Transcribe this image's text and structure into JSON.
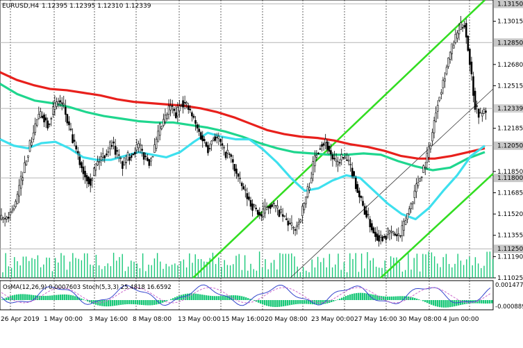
{
  "header": {
    "symbol_tf": "EURUSD,H4",
    "ohlc": "1.12395 1.12395 1.12310 1.12339"
  },
  "price_axis": {
    "ticks": [
      "1.13015",
      "1.12680",
      "1.12515",
      "1.12185",
      "1.11850",
      "1.11685",
      "1.11520",
      "1.11355",
      "1.11190",
      "1.11025"
    ],
    "tick_values": [
      1.13015,
      1.1268,
      1.12515,
      1.12185,
      1.1185,
      1.11685,
      1.1152,
      1.11355,
      1.1119,
      1.11025
    ],
    "ylim": [
      1.11025,
      1.1318
    ],
    "highlight_labels": [
      {
        "text": "1.13150",
        "value": 1.1315
      },
      {
        "text": "1.12850",
        "value": 1.1285
      },
      {
        "text": "1.12339",
        "value": 1.12339
      },
      {
        "text": "1.12050",
        "value": 1.1205
      },
      {
        "text": "1.11800",
        "value": 1.118
      },
      {
        "text": "1.11250",
        "value": 1.1125
      }
    ],
    "highlight_color": "#c8c8c8",
    "current_color": "#d0d0d0"
  },
  "time_axis": {
    "labels": [
      "26 Apr 2019",
      "1 May 00:00",
      "3 May 16:00",
      "8 May 08:00",
      "13 May 00:00",
      "15 May 16:00",
      "20 May 08:00",
      "23 May 00:00",
      "27 May 16:00",
      "30 May 08:00",
      "4 Jun 00:00"
    ]
  },
  "indicator": {
    "label": "OsMA(12,26,9) 0.0007603  Stoch(5,3,3) 25.4818 16.6592",
    "axis_top": "0.0014777",
    "axis_bottom": "-0.0008899"
  },
  "colors": {
    "ema_slow": "#e8201c",
    "ema_mid": "#1fd68e",
    "ema_fast": "#3ee0ee",
    "channel": "#33dd22",
    "channel_mid": "#333333",
    "osma": "#18c878",
    "stoch_main": "#3344cc",
    "stoch_signal": "#cc66cc",
    "candles": "#000000",
    "volume": "#18c878"
  },
  "chart_data": {
    "type": "line",
    "title": "EURUSD,H4",
    "price_range": [
      1.11025,
      1.1318
    ],
    "series": [
      {
        "name": "close",
        "values": [
          1.1148,
          1.1153,
          1.116,
          1.1178,
          1.1196,
          1.121,
          1.1226,
          1.1229,
          1.1222,
          1.1233,
          1.124,
          1.1235,
          1.1218,
          1.1205,
          1.1192,
          1.1182,
          1.1178,
          1.119,
          1.1196,
          1.12,
          1.1208,
          1.1198,
          1.119,
          1.1196,
          1.12,
          1.1205,
          1.1197,
          1.1193,
          1.1203,
          1.1218,
          1.1226,
          1.1236,
          1.1228,
          1.124,
          1.1236,
          1.1228,
          1.1218,
          1.121,
          1.1203,
          1.1212,
          1.121,
          1.12,
          1.1198,
          1.1187,
          1.1176,
          1.1168,
          1.116,
          1.1155,
          1.115,
          1.1158,
          1.116,
          1.1155,
          1.115,
          1.1145,
          1.114,
          1.1146,
          1.116,
          1.1176,
          1.1196,
          1.1206,
          1.1208,
          1.1198,
          1.119,
          1.1196,
          1.1193,
          1.1185,
          1.117,
          1.1158,
          1.1148,
          1.1138,
          1.1134,
          1.1135,
          1.1138,
          1.1136,
          1.1135,
          1.1148,
          1.116,
          1.1174,
          1.1184,
          1.1196,
          1.1215,
          1.124,
          1.1255,
          1.1272,
          1.1285,
          1.1295,
          1.13,
          1.127,
          1.1236,
          1.1228,
          1.1234
        ]
      },
      {
        "name": "ema_fast",
        "values": [
          1.121,
          1.1205,
          1.1203,
          1.1207,
          1.1208,
          1.1203,
          1.1196,
          1.1194,
          1.1194,
          1.1197,
          1.12,
          1.1198,
          1.1196,
          1.12,
          1.1208,
          1.1215,
          1.1212,
          1.121,
          1.121,
          1.1202,
          1.1192,
          1.118,
          1.117,
          1.1172,
          1.1178,
          1.1182,
          1.118,
          1.117,
          1.116,
          1.1152,
          1.1148,
          1.1157,
          1.117,
          1.1182,
          1.1197,
          1.1205
        ]
      },
      {
        "name": "ema_mid",
        "values": [
          1.1253,
          1.1245,
          1.124,
          1.1238,
          1.1235,
          1.1231,
          1.1228,
          1.1226,
          1.1224,
          1.1223,
          1.1223,
          1.1221,
          1.1219,
          1.1216,
          1.1212,
          1.1207,
          1.1203,
          1.12,
          1.1199,
          1.1198,
          1.1198,
          1.1199,
          1.1198,
          1.1193,
          1.1189,
          1.1186,
          1.1188,
          1.1195,
          1.12
        ]
      },
      {
        "name": "ema_slow",
        "values": [
          1.1262,
          1.1256,
          1.1252,
          1.1249,
          1.1248,
          1.1246,
          1.1244,
          1.1241,
          1.1239,
          1.1238,
          1.1237,
          1.1236,
          1.1234,
          1.1231,
          1.1227,
          1.1222,
          1.1217,
          1.1214,
          1.1212,
          1.1211,
          1.1209,
          1.1206,
          1.1204,
          1.1201,
          1.1197,
          1.1195,
          1.1195,
          1.1197,
          1.12,
          1.1203
        ]
      }
    ]
  }
}
